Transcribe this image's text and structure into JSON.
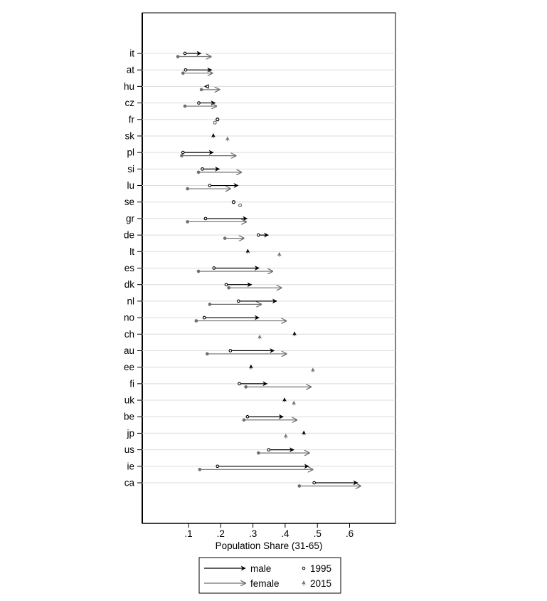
{
  "chart_data": {
    "type": "arrow-dot",
    "title": "",
    "xlabel": "Population Share (31-65)",
    "ylabel": "",
    "xlim": [
      0.03,
      0.8
    ],
    "xticks": [
      0.1,
      0.2,
      0.3,
      0.4,
      0.5,
      0.6
    ],
    "xtick_labels": [
      ".1",
      ".2",
      ".3",
      ".4",
      ".5",
      ".6"
    ],
    "grid": true,
    "legend": {
      "placement": "bottom",
      "entries": [
        {
          "label": "male",
          "kind": "arrow",
          "color": "#000000"
        },
        {
          "label": "1995",
          "kind": "circle"
        },
        {
          "label": "female",
          "kind": "arrow",
          "color": "#707070"
        },
        {
          "label": "2015",
          "kind": "spike"
        }
      ]
    },
    "series_colors": {
      "male": "#000000",
      "female": "#707070"
    },
    "categories": [
      "it",
      "at",
      "hu",
      "cz",
      "fr",
      "sk",
      "pl",
      "si",
      "lu",
      "se",
      "gr",
      "de",
      "lt",
      "es",
      "dk",
      "nl",
      "no",
      "ch",
      "au",
      "ee",
      "fi",
      "uk",
      "be",
      "jp",
      "us",
      "ie",
      "ca"
    ],
    "series": [
      {
        "name": "male",
        "y1995": [
          0.089,
          0.091,
          0.159,
          0.132,
          0.19,
          0.177,
          0.083,
          0.143,
          0.166,
          0.24,
          0.153,
          0.317,
          0.284,
          0.179,
          0.217,
          0.255,
          0.149,
          0.429,
          0.23,
          0.294,
          0.258,
          0.398,
          0.283,
          0.458,
          0.349,
          0.19,
          0.49
        ],
        "y2015": [
          0.139,
          0.172,
          0.15,
          0.183,
          0.191,
          0.177,
          0.177,
          0.196,
          0.254,
          0.24,
          0.282,
          0.348,
          0.284,
          0.319,
          0.296,
          0.374,
          0.319,
          0.429,
          0.366,
          0.294,
          0.344,
          0.398,
          0.394,
          0.458,
          0.427,
          0.473,
          0.625
        ]
      },
      {
        "name": "female",
        "y1995": [
          0.067,
          0.083,
          0.14,
          0.089,
          0.182,
          0.221,
          0.079,
          0.131,
          0.097,
          0.26,
          0.097,
          0.213,
          0.382,
          0.131,
          0.225,
          0.166,
          0.124,
          0.321,
          0.158,
          0.486,
          0.278,
          0.427,
          0.272,
          0.402,
          0.317,
          0.135,
          0.444
        ],
        "y2015": [
          0.17,
          0.174,
          0.196,
          0.187,
          0.183,
          0.221,
          0.247,
          0.264,
          0.23,
          0.26,
          0.279,
          0.272,
          0.382,
          0.361,
          0.388,
          0.326,
          0.403,
          0.321,
          0.404,
          0.486,
          0.48,
          0.427,
          0.436,
          0.402,
          0.475,
          0.486,
          0.634
        ]
      }
    ]
  }
}
